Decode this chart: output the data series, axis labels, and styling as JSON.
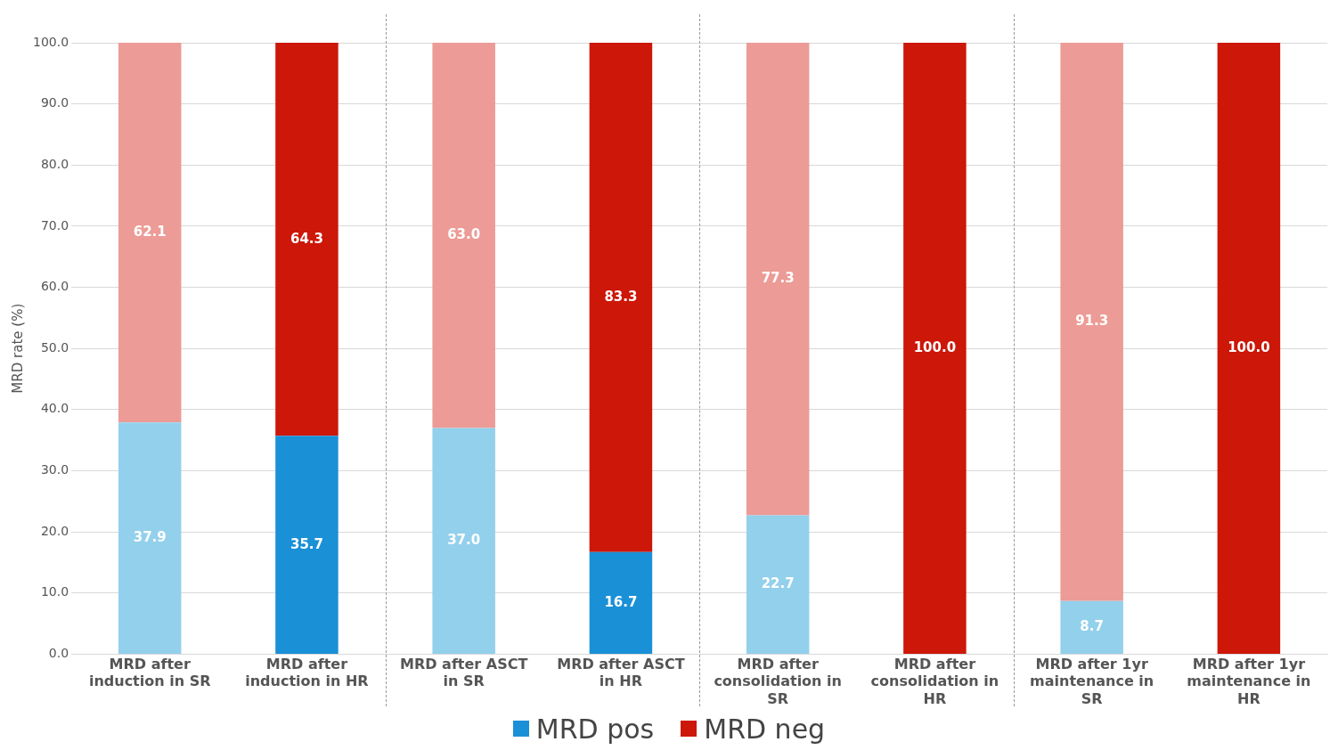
{
  "chart_data": {
    "type": "bar",
    "stacked": true,
    "ylabel": "MRD rate (%)",
    "categories": [
      "MRD after induction in SR",
      "MRD after induction in HR",
      "MRD after ASCT in SR",
      "MRD after ASCT in HR",
      "MRD after consolidation in SR",
      "MRD after consolidation in HR",
      "MRD after 1yr maintenance in SR",
      "MRD after 1yr maintenance in HR"
    ],
    "series": [
      {
        "name": "MRD pos",
        "color": "#1a90d6",
        "colors": [
          "#93d0ec",
          "#1a90d6",
          "#93d0ec",
          "#1a90d6",
          "#93d0ec",
          "#1a90d6",
          "#93d0ec",
          "#1a90d6"
        ],
        "values": [
          37.9,
          35.7,
          37.0,
          16.7,
          22.7,
          0,
          8.7,
          0
        ],
        "value_labels": [
          "37.9",
          "35.7",
          "37.0",
          "16.7",
          "22.7",
          null,
          "8.7",
          null
        ]
      },
      {
        "name": "MRD neg",
        "color": "#cc1709",
        "colors": [
          "#ec9b96",
          "#cc1709",
          "#ec9b96",
          "#cc1709",
          "#ec9b96",
          "#cc1709",
          "#ec9b96",
          "#cc1709"
        ],
        "values": [
          62.1,
          64.3,
          63.0,
          83.3,
          77.3,
          100.0,
          91.3,
          100.0
        ],
        "value_labels": [
          "62.1",
          "64.3",
          "63.0",
          "83.3",
          "77.3",
          "100.0",
          "91.3",
          "100.0"
        ]
      }
    ],
    "ylim": [
      0,
      100
    ],
    "yticks": [
      {
        "value": 0,
        "label": "0.0"
      },
      {
        "value": 10,
        "label": "10.0"
      },
      {
        "value": 20,
        "label": "20.0"
      },
      {
        "value": 30,
        "label": "30.0"
      },
      {
        "value": 40,
        "label": "40.0"
      },
      {
        "value": 50,
        "label": "50.0"
      },
      {
        "value": 60,
        "label": "60.0"
      },
      {
        "value": 70,
        "label": "70.0"
      },
      {
        "value": 80,
        "label": "80.0"
      },
      {
        "value": 90,
        "label": "90.0"
      },
      {
        "value": 100,
        "label": "100.0"
      }
    ],
    "grid": "y",
    "legend": "bottom"
  }
}
